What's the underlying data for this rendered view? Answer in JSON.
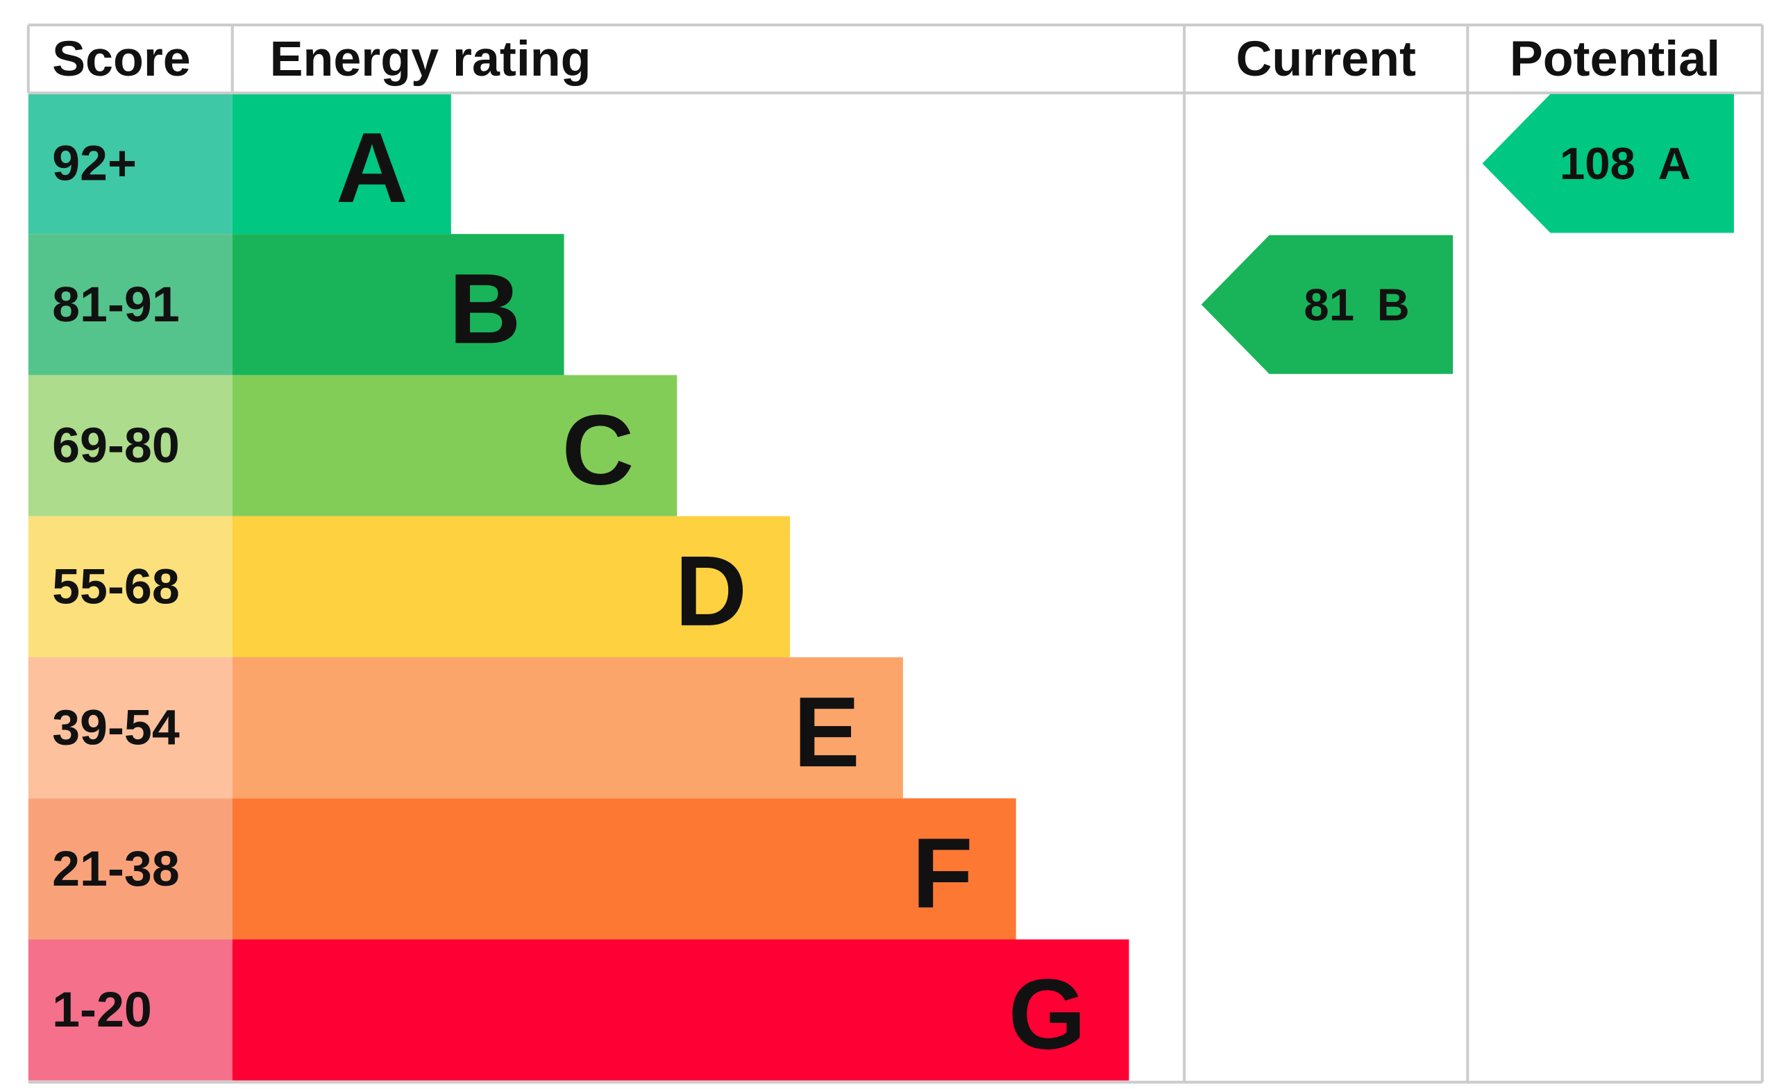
{
  "header": {
    "score": "Score",
    "rating": "Energy rating",
    "current": "Current",
    "potential": "Potential"
  },
  "bands": [
    {
      "score": "92+",
      "letter": "A",
      "color": "#00c781",
      "light": "#3ec8a6"
    },
    {
      "score": "81-91",
      "letter": "B",
      "color": "#19b459",
      "light": "#55c48c"
    },
    {
      "score": "69-80",
      "letter": "C",
      "color": "#82cd58",
      "light": "#acdc8c"
    },
    {
      "score": "55-68",
      "letter": "D",
      "color": "#fdd13f",
      "light": "#fbe07c"
    },
    {
      "score": "39-54",
      "letter": "E",
      "color": "#fca56b",
      "light": "#fdc19d"
    },
    {
      "score": "21-38",
      "letter": "F",
      "color": "#fd7833",
      "light": "#f9a27a"
    },
    {
      "score": "1-20",
      "letter": "G",
      "color": "#ff0034",
      "light": "#f5708a"
    }
  ],
  "current": {
    "score": 81,
    "rating": "B",
    "color": "#19b459"
  },
  "potential": {
    "score": 108,
    "rating": "A",
    "color": "#00c781"
  }
}
